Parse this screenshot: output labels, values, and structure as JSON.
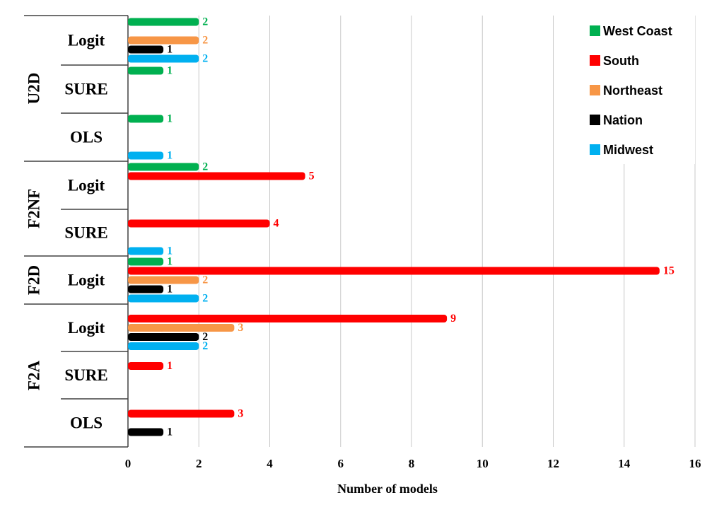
{
  "chart_data": {
    "type": "bar",
    "orientation": "horizontal",
    "title": "",
    "xlabel": "Number of models",
    "ylabel": "",
    "xlim": [
      0,
      16
    ],
    "xticks": [
      0,
      2,
      4,
      6,
      8,
      10,
      12,
      14,
      16
    ],
    "grid": true,
    "legend_position": "top-right",
    "series": [
      {
        "name": "West Coast",
        "color": "#00b050"
      },
      {
        "name": "South",
        "color": "#ff0000"
      },
      {
        "name": "Northeast",
        "color": "#f79646"
      },
      {
        "name": "Nation",
        "color": "#000000"
      },
      {
        "name": "Midwest",
        "color": "#00b0f0"
      }
    ],
    "groups": [
      {
        "label": "U2D",
        "categories": [
          {
            "label": "Logit",
            "values": {
              "West Coast": 2,
              "Northeast": 2,
              "Nation": 1,
              "Midwest": 2
            }
          },
          {
            "label": "SURE",
            "values": {
              "West Coast": 1
            }
          },
          {
            "label": "OLS",
            "values": {
              "West Coast": 1,
              "Midwest": 1
            }
          }
        ]
      },
      {
        "label": "F2NF",
        "categories": [
          {
            "label": "Logit",
            "values": {
              "West Coast": 2,
              "South": 5
            }
          },
          {
            "label": "SURE",
            "values": {
              "South": 4,
              "Midwest": 1
            }
          }
        ]
      },
      {
        "label": "F2D",
        "categories": [
          {
            "label": "Logit",
            "values": {
              "West Coast": 1,
              "South": 15,
              "Northeast": 2,
              "Nation": 1,
              "Midwest": 2
            }
          }
        ]
      },
      {
        "label": "F2A",
        "categories": [
          {
            "label": "Logit",
            "values": {
              "South": 9,
              "Northeast": 3,
              "Nation": 2,
              "Midwest": 2
            }
          },
          {
            "label": "SURE",
            "values": {
              "South": 1
            }
          },
          {
            "label": "OLS",
            "values": {
              "South": 3,
              "Nation": 1
            }
          }
        ]
      }
    ]
  }
}
